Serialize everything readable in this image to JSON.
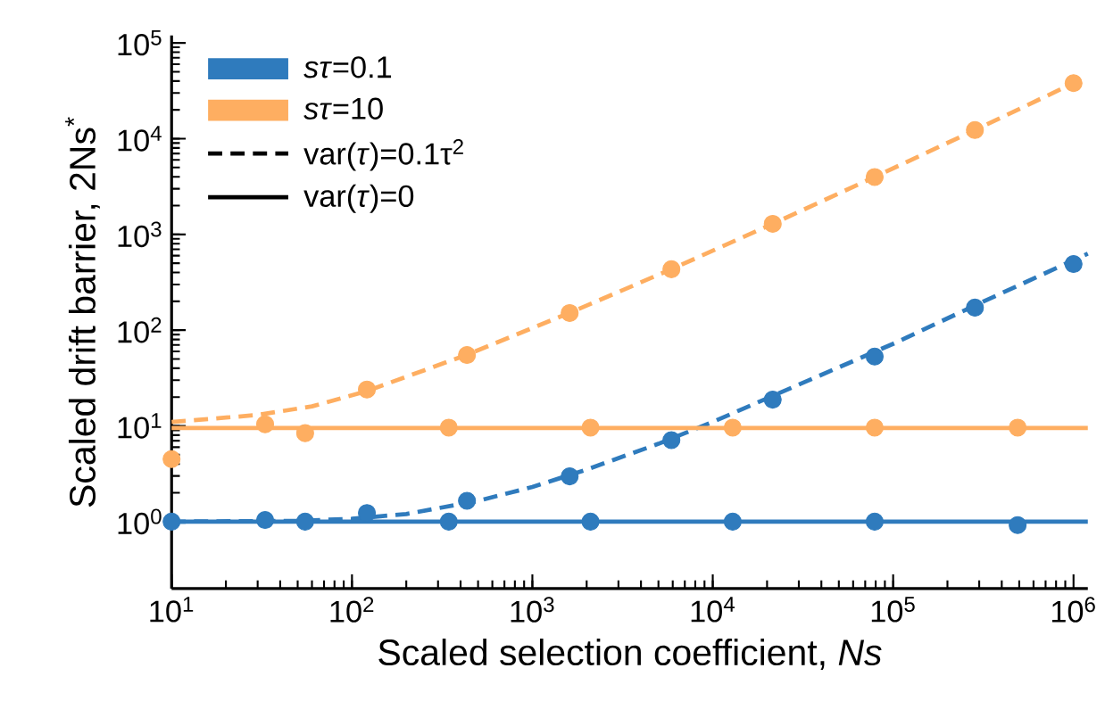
{
  "chart_data": {
    "type": "scatter",
    "xlabel": "Scaled selection coefficient, *Ns*",
    "ylabel": "Scaled drift barrier, 2Ns$^{*}$",
    "log": "xy",
    "xlim": [
      10,
      1200000
    ],
    "ylim": [
      0.2,
      120000
    ],
    "xticks": [
      {
        "value": 10,
        "label": "10$^{1}$"
      },
      {
        "value": 100,
        "label": "10$^{2}$"
      },
      {
        "value": 1000,
        "label": "10$^{3}$"
      },
      {
        "value": 10000,
        "label": "10$^{4}$"
      },
      {
        "value": 100000,
        "label": "10$^{5}$"
      },
      {
        "value": 1000000,
        "label": "10$^{6}$"
      }
    ],
    "yticks": [
      {
        "value": 1,
        "label": "10$^{0}$"
      },
      {
        "value": 10,
        "label": "10$^{1}$"
      },
      {
        "value": 100,
        "label": "10$^{2}$"
      },
      {
        "value": 1000,
        "label": "10$^{3}$"
      },
      {
        "value": 10000,
        "label": "10$^{4}$"
      },
      {
        "value": 100000,
        "label": "10$^{5}$"
      }
    ],
    "legend": "top left",
    "annotations": [
      "var(*τ*)=0.1τ$^{2}$",
      "var(*τ*)=0"
    ],
    "series": [
      {
        "type": "line",
        "color": "#2f7bbd",
        "line_style": "dashed",
        "marker": "none",
        "x": [
          10,
          50,
          100,
          200,
          500,
          1000,
          2000,
          5000,
          10000,
          30000,
          100000,
          300000,
          1200000
        ],
        "values": [
          1,
          1.02,
          1.07,
          1.2,
          1.65,
          2.3,
          3.5,
          6.5,
          11,
          27,
          72,
          190,
          630
        ]
      },
      {
        "type": "line",
        "color": "#feae61",
        "line_style": "dashed",
        "marker": "none",
        "x": [
          10,
          30,
          60,
          120,
          430,
          1600,
          5900,
          21500,
          79000,
          284000,
          1000000,
          1200000
        ],
        "values": [
          11,
          13,
          16,
          23,
          55,
          151,
          433,
          1290,
          3980,
          12300,
          38000,
          45000
        ]
      },
      {
        "type": "line",
        "name": "*sτ*=0.1",
        "color": "#2f7bbd",
        "line_style": "solid",
        "marker": "none",
        "x": [
          10,
          1200000
        ],
        "values": [
          1,
          1
        ]
      },
      {
        "type": "line",
        "name": "*sτ*=10",
        "color": "#feae61",
        "line_style": "solid",
        "marker": "none",
        "x": [
          10,
          1200000
        ],
        "values": [
          9.5,
          9.5
        ]
      },
      {
        "color": "#2f7bbd",
        "marker": "circle",
        "x": [
          121,
          434,
          1610,
          5900,
          21500,
          79000,
          284000,
          1000000
        ],
        "values": [
          1.23,
          1.65,
          2.97,
          7.1,
          18.8,
          53,
          172,
          490
        ]
      },
      {
        "color": "#feae61",
        "marker": "circle",
        "x": [
          121,
          434,
          1610,
          5900,
          21500,
          79000,
          284000,
          1000000
        ],
        "values": [
          24,
          55,
          151,
          433,
          1290,
          3980,
          12300,
          38000
        ]
      },
      {
        "color": "#2f7bbd",
        "marker": "circle",
        "x": [
          10,
          33,
          55,
          344,
          2100,
          12900,
          79000,
          490000
        ],
        "values": [
          1,
          1.04,
          1,
          1,
          1,
          1,
          1,
          0.92
        ]
      },
      {
        "color": "#feae61",
        "marker": "circle",
        "x": [
          10,
          33,
          55,
          344,
          2100,
          12900,
          79000,
          490000
        ],
        "values": [
          4.5,
          10.4,
          8.4,
          9.6,
          9.6,
          9.6,
          9.6,
          9.6
        ]
      }
    ]
  }
}
